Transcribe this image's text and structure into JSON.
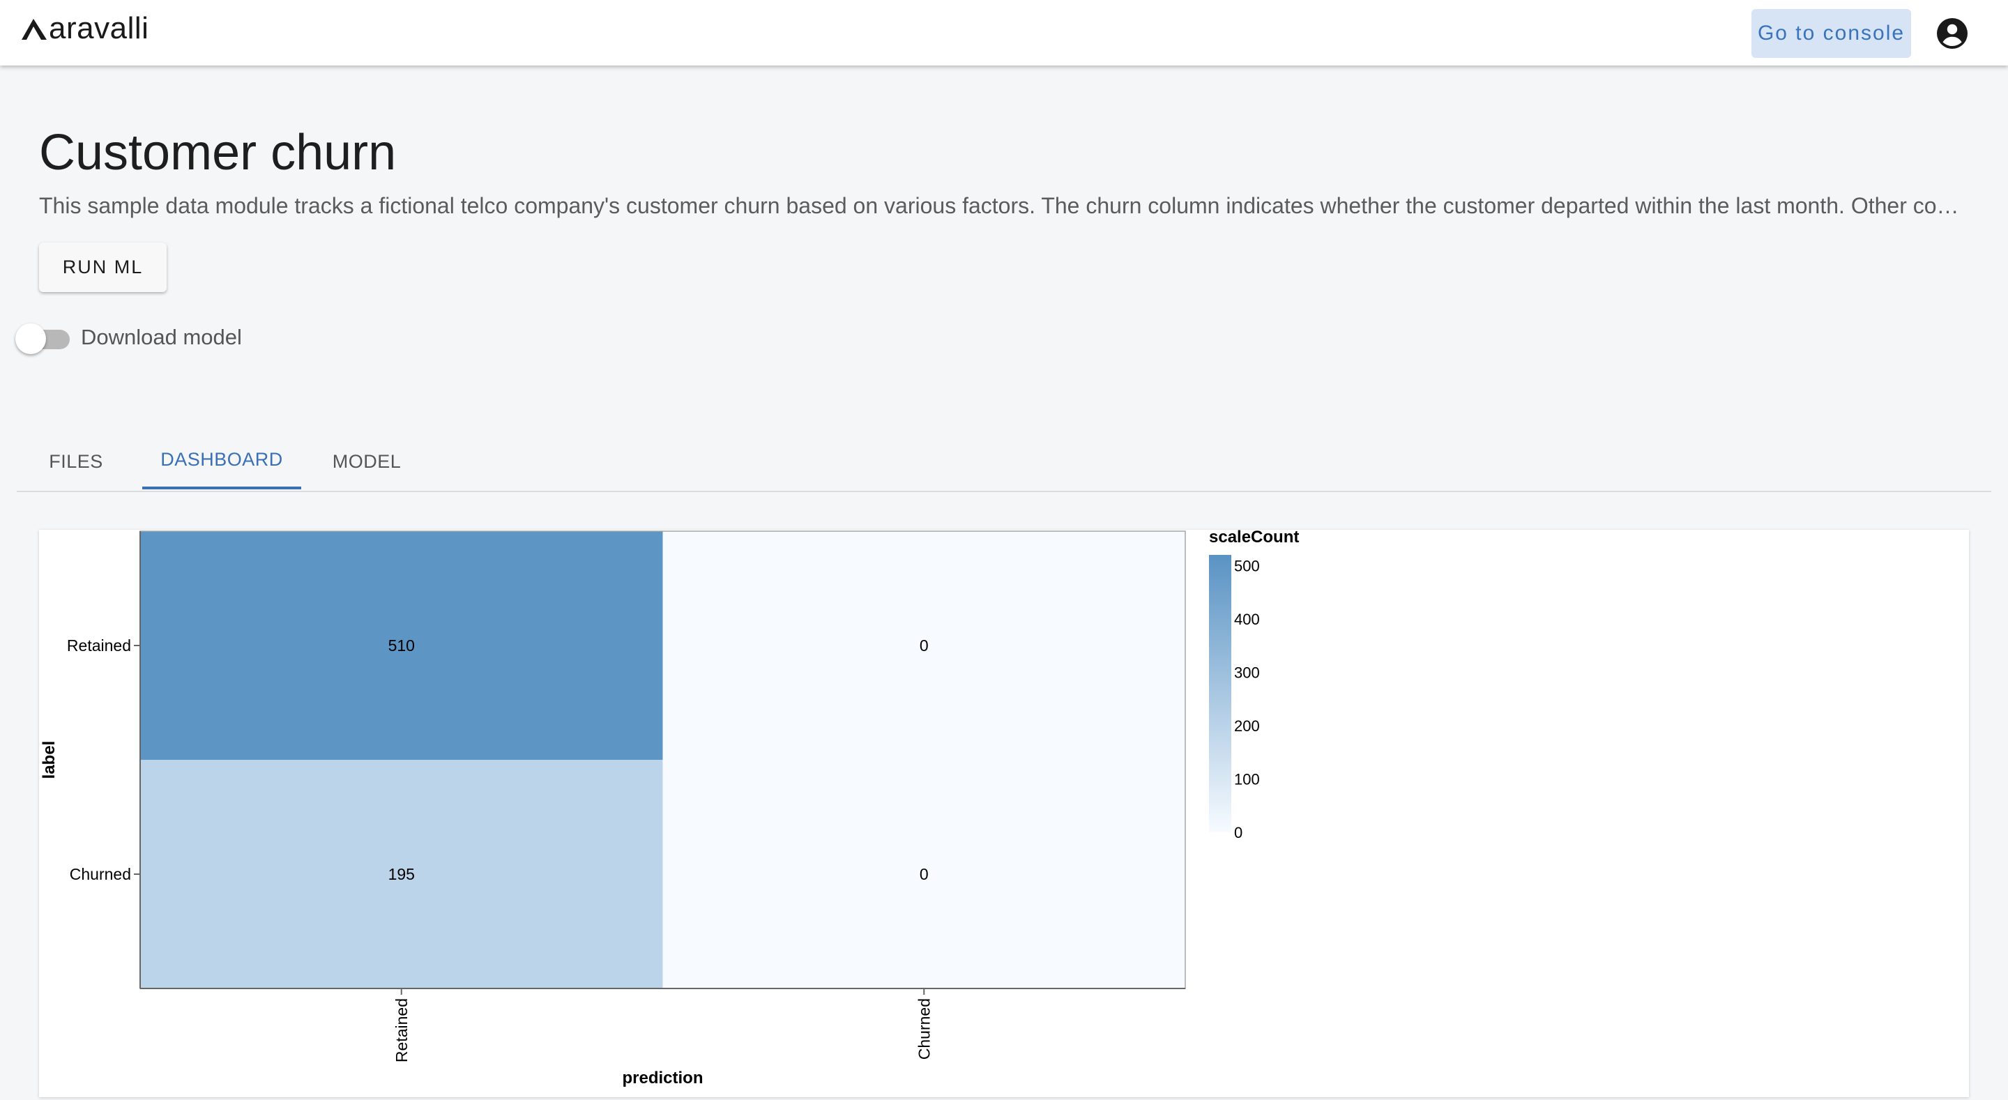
{
  "app": {
    "logo_text": "aravalli",
    "console_button": "Go to console",
    "account_icon": "account-circle-icon"
  },
  "page": {
    "title": "Customer churn",
    "description": "This sample data module tracks a fictional telco company's customer churn based on various factors. The churn column indicates whether the customer departed within the last month. Other columns include gender, dependents, monthly charges, and many with information about the types of services each customer has.",
    "run_button": "RUN ML",
    "toggle_label": "Download model",
    "toggle_on": false
  },
  "tabs": [
    {
      "label": "FILES",
      "active": false
    },
    {
      "label": "DASHBOARD",
      "active": true
    },
    {
      "label": "MODEL",
      "active": false
    }
  ],
  "chart_data": {
    "type": "heatmap",
    "xlabel": "prediction",
    "ylabel": "label",
    "x_categories": [
      "Retained",
      "Churned"
    ],
    "y_categories": [
      "Retained",
      "Churned"
    ],
    "values": [
      [
        510,
        0
      ],
      [
        195,
        0
      ]
    ],
    "legend_title": "scaleCount",
    "legend_ticks": [
      500,
      400,
      300,
      200,
      100,
      0
    ],
    "color_range": [
      "#f7fbff",
      "#5a93c4"
    ],
    "color_domain": [
      0,
      520
    ]
  }
}
